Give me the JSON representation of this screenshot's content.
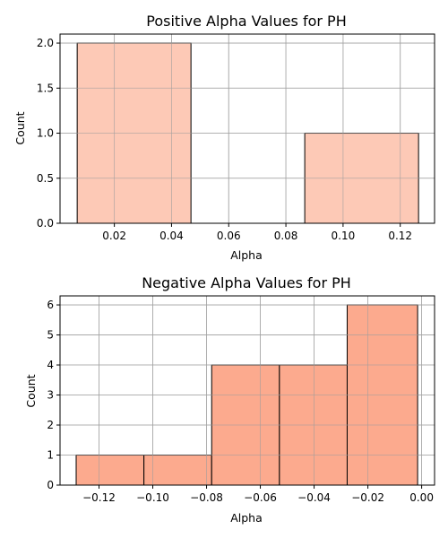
{
  "chart_data": [
    {
      "type": "bar",
      "title": "Positive Alpha Values for PH",
      "xlabel": "Alpha",
      "ylabel": "Count",
      "bins": [
        {
          "x0": 0.007,
          "x1": 0.0468,
          "value": 2
        },
        {
          "x0": 0.0468,
          "x1": 0.0866,
          "value": 0
        },
        {
          "x0": 0.0866,
          "x1": 0.1264,
          "value": 1
        }
      ],
      "xlim": [
        0.001,
        0.132
      ],
      "ylim": [
        0,
        2.1
      ],
      "xticks": [
        {
          "v": 0.02,
          "label": "0.02"
        },
        {
          "v": 0.04,
          "label": "0.04"
        },
        {
          "v": 0.06,
          "label": "0.06"
        },
        {
          "v": 0.08,
          "label": "0.08"
        },
        {
          "v": 0.1,
          "label": "0.10"
        },
        {
          "v": 0.12,
          "label": "0.12"
        }
      ],
      "yticks": [
        {
          "v": 0,
          "label": "0.0"
        },
        {
          "v": 0.5,
          "label": "0.5"
        },
        {
          "v": 1.0,
          "label": "1.0"
        },
        {
          "v": 1.5,
          "label": "1.5"
        },
        {
          "v": 2.0,
          "label": "2.0"
        }
      ],
      "grid": true,
      "bar_color": "#fdc5b0"
    },
    {
      "type": "bar",
      "title": "Negative Alpha Values for PH",
      "xlabel": "Alpha",
      "ylabel": "Count",
      "bins": [
        {
          "x0": -0.1285,
          "x1": -0.1033,
          "value": 1
        },
        {
          "x0": -0.1033,
          "x1": -0.0781,
          "value": 1
        },
        {
          "x0": -0.0781,
          "x1": -0.0529,
          "value": 4
        },
        {
          "x0": -0.0529,
          "x1": -0.0277,
          "value": 4
        },
        {
          "x0": -0.0277,
          "x1": -0.0015,
          "value": 6
        }
      ],
      "xlim": [
        -0.1345,
        0.0048
      ],
      "ylim": [
        0,
        6.3
      ],
      "xticks": [
        {
          "v": -0.12,
          "label": "−0.12"
        },
        {
          "v": -0.1,
          "label": "−0.10"
        },
        {
          "v": -0.08,
          "label": "−0.08"
        },
        {
          "v": -0.06,
          "label": "−0.06"
        },
        {
          "v": -0.04,
          "label": "−0.04"
        },
        {
          "v": -0.02,
          "label": "−0.02"
        },
        {
          "v": 0.0,
          "label": "0.00"
        }
      ],
      "yticks": [
        {
          "v": 0,
          "label": "0"
        },
        {
          "v": 1,
          "label": "1"
        },
        {
          "v": 2,
          "label": "2"
        },
        {
          "v": 3,
          "label": "3"
        },
        {
          "v": 4,
          "label": "4"
        },
        {
          "v": 5,
          "label": "5"
        },
        {
          "v": 6,
          "label": "6"
        }
      ],
      "grid": true,
      "bar_color": "#fca485"
    }
  ]
}
